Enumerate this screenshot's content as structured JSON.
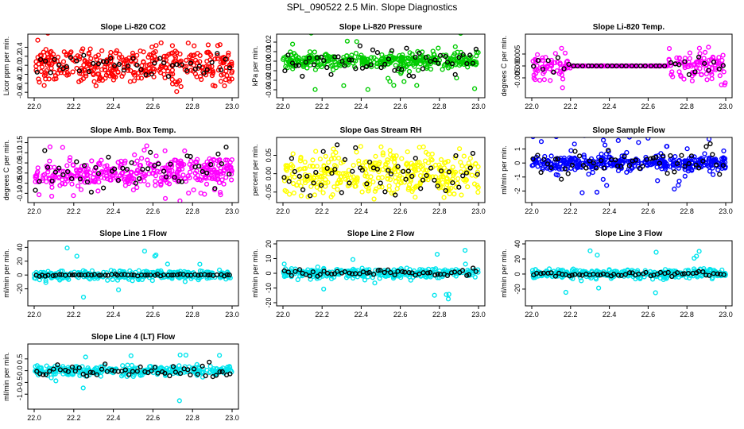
{
  "page_title": "SPL_090522  2.5 Min. Slope Diagnostics",
  "chart_data": [
    {
      "type": "scatter",
      "title": "Slope Li-820 CO2",
      "ylabel": "Licor ppm per min.",
      "color": "#ff0000",
      "xlim": [
        22.0,
        23.0
      ],
      "ylim": [
        -0.65,
        0.62
      ],
      "xticks": [
        "22.0",
        "22.2",
        "22.4",
        "22.6",
        "22.8",
        "23.0"
      ],
      "yticks": [
        -0.6,
        -0.4,
        -0.2,
        0.0,
        0.2,
        0.4
      ],
      "yticklabels": [
        "-0.6",
        "-0.4",
        "-0.2",
        "0.0",
        "0.2",
        "0.4"
      ],
      "spread": 0.2,
      "outlier": 0.5,
      "dense": 0.98,
      "black_spread": 0.12,
      "n": 380,
      "nb": 45,
      "seed": 11
    },
    {
      "type": "scatter",
      "title": "Slope Li-820 Pressure",
      "ylabel": "kPa per min.",
      "color": "#00cc00",
      "xlim": [
        22.0,
        23.0
      ],
      "ylim": [
        -0.035,
        0.025
      ],
      "xticks": [
        "22.0",
        "22.2",
        "22.4",
        "22.6",
        "22.8",
        "23.0"
      ],
      "yticks": [
        -0.03,
        -0.02,
        -0.01,
        0.0,
        0.01,
        0.02
      ],
      "yticklabels": [
        "-0.03",
        "-0.02",
        "-0.01",
        "0.00",
        "0.01",
        "0.02"
      ],
      "spread": 0.004,
      "outlier": 0.03,
      "dense": 0.9,
      "black_spread": 0.008,
      "n": 380,
      "nb": 55,
      "seed": 23
    },
    {
      "type": "scatter",
      "title": "Slope Li-820 Temp.",
      "ylabel": "degrees C per min.",
      "color": "#ff00ff",
      "xlim": [
        22.0,
        23.0
      ],
      "ylim": [
        -0.012,
        0.012
      ],
      "xticks": [
        "22.0",
        "22.2",
        "22.4",
        "22.6",
        "22.8",
        "23.0"
      ],
      "yticks": [
        -0.005,
        0.0,
        0.005
      ],
      "yticklabels": [
        "-0.005",
        "0.000",
        "0.005"
      ],
      "spread": 0.003,
      "outlier": 0.011,
      "dense": 0.85,
      "black_spread": 0.002,
      "flat": [
        0.2,
        0.7
      ],
      "n": 300,
      "nb": 40,
      "seed": 37
    },
    {
      "type": "scatter",
      "title": "Slope Amb. Box Temp.",
      "ylabel": "degrees C per min.",
      "color": "#ff00ff",
      "xlim": [
        22.0,
        23.0
      ],
      "ylim": [
        -0.13,
        0.16
      ],
      "xticks": [
        "22.0",
        "22.2",
        "22.4",
        "22.6",
        "22.8",
        "23.0"
      ],
      "yticks": [
        -0.1,
        -0.05,
        0.0,
        0.05,
        0.1,
        0.15
      ],
      "yticklabels": [
        "-0.10",
        "-0.05",
        "0.00",
        "0.05",
        "0.10",
        "0.15"
      ],
      "spread": 0.035,
      "outlier": 0.14,
      "dense": 0.9,
      "black_spread": 0.05,
      "trend": 0.02,
      "n": 380,
      "nb": 50,
      "seed": 41
    },
    {
      "type": "scatter",
      "title": "Slope Gas Stream RH",
      "ylabel": "percent per min.",
      "color": "#ffff00",
      "xlim": [
        22.0,
        23.0
      ],
      "ylim": [
        -0.07,
        0.09
      ],
      "xticks": [
        "22.0",
        "22.2",
        "22.4",
        "22.6",
        "22.8",
        "23.0"
      ],
      "yticks": [
        -0.05,
        0.0,
        0.05
      ],
      "yticklabels": [
        "-0.05",
        "0.00",
        "0.05"
      ],
      "spread": 0.03,
      "outlier": 0.08,
      "dense": 0.97,
      "black_spread": 0.03,
      "n": 380,
      "nb": 55,
      "seed": 53
    },
    {
      "type": "scatter",
      "title": "Slope Sample Flow",
      "ylabel": "ml/min per min.",
      "color": "#0000ff",
      "xlim": [
        22.0,
        23.0
      ],
      "ylim": [
        -2.6,
        1.6
      ],
      "xticks": [
        "22.0",
        "22.2",
        "22.4",
        "22.6",
        "22.8",
        "23.0"
      ],
      "yticks": [
        -2,
        -1,
        0,
        1
      ],
      "yticklabels": [
        "-2",
        "-1",
        "0",
        "1"
      ],
      "spread": 0.25,
      "outlier": 2.3,
      "dense": 0.9,
      "black_spread": 0.45,
      "n": 380,
      "nb": 55,
      "seed": 61
    },
    {
      "type": "scatter",
      "title": "Slope Line 1 Flow",
      "ylabel": "ml/min per min.",
      "color": "#00e5ee",
      "xlim": [
        22.0,
        23.0
      ],
      "ylim": [
        -40,
        45
      ],
      "xticks": [
        "22.0",
        "22.2",
        "22.4",
        "22.6",
        "22.8",
        "23.0"
      ],
      "yticks": [
        -20,
        0,
        20,
        40
      ],
      "yticklabels": [
        "-20",
        "0",
        "20",
        "40"
      ],
      "spread": 3,
      "outlier": 40,
      "dense": 0.96,
      "black_spread": 0.6,
      "n": 330,
      "nb": 60,
      "seed": 71
    },
    {
      "type": "scatter",
      "title": "Slope Line 2 Flow",
      "ylabel": "ml/min per min.",
      "color": "#00e5ee",
      "xlim": [
        22.0,
        23.0
      ],
      "ylim": [
        -20,
        20
      ],
      "xticks": [
        "22.0",
        "22.2",
        "22.4",
        "22.6",
        "22.8",
        "23.0"
      ],
      "yticks": [
        -20,
        -10,
        0,
        10,
        20
      ],
      "yticklabels": [
        "-20",
        "-10",
        "0",
        "10",
        "20"
      ],
      "spread": 1.6,
      "outlier": 18,
      "dense": 0.95,
      "black_spread": 1.5,
      "n": 330,
      "nb": 55,
      "seed": 83
    },
    {
      "type": "scatter",
      "title": "Slope Line 3 Flow",
      "ylabel": "ml/min per min.",
      "color": "#00e5ee",
      "xlim": [
        22.0,
        23.0
      ],
      "ylim": [
        -38,
        40
      ],
      "xticks": [
        "22.0",
        "22.2",
        "22.4",
        "22.6",
        "22.8",
        "23.0"
      ],
      "yticks": [
        -20,
        0,
        20,
        40
      ],
      "yticklabels": [
        "-20",
        "0",
        "20",
        "40"
      ],
      "spread": 3,
      "outlier": 32,
      "dense": 0.95,
      "black_spread": 1.5,
      "n": 330,
      "nb": 55,
      "seed": 97
    },
    {
      "type": "scatter",
      "title": "Slope Line 4 (LT) Flow",
      "ylabel": "ml/min per min.",
      "color": "#00e5ee",
      "xlim": [
        22.0,
        23.0
      ],
      "ylim": [
        -1.5,
        1.0
      ],
      "xticks": [
        "22.0",
        "22.2",
        "22.4",
        "22.6",
        "22.8",
        "23.0"
      ],
      "yticks": [
        -1.0,
        -0.5,
        0.0,
        0.5
      ],
      "yticklabels": [
        "-1.0",
        "-0.5",
        "0.0",
        "0.5"
      ],
      "spread": 0.1,
      "outlier": 1.4,
      "dense": 0.96,
      "black_spread": 0.12,
      "n": 330,
      "nb": 55,
      "seed": 109
    }
  ]
}
